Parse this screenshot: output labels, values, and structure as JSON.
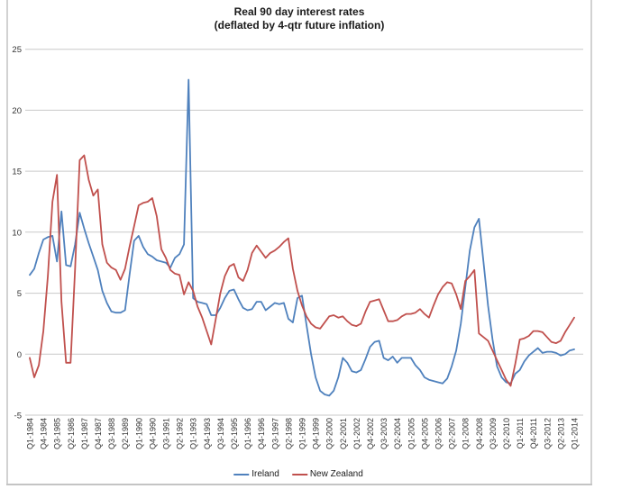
{
  "chart_data": {
    "type": "line",
    "title": "Real 90 day interest rates",
    "subtitle": "(deflated by 4-qtr future inflation)",
    "xlabel": "",
    "ylabel": "",
    "ylim": [
      -5,
      25
    ],
    "y_ticks": [
      -5,
      0,
      5,
      10,
      15,
      20,
      25
    ],
    "grid": true,
    "legend_position": "bottom",
    "x_tick_every": 3,
    "x_categories": [
      "Q1-1984",
      "Q2-1984",
      "Q3-1984",
      "Q4-1984",
      "Q1-1985",
      "Q2-1985",
      "Q3-1985",
      "Q4-1985",
      "Q1-1986",
      "Q2-1986",
      "Q3-1986",
      "Q4-1986",
      "Q1-1987",
      "Q2-1987",
      "Q3-1987",
      "Q4-1987",
      "Q1-1988",
      "Q2-1988",
      "Q3-1988",
      "Q4-1988",
      "Q1-1989",
      "Q2-1989",
      "Q3-1989",
      "Q4-1989",
      "Q1-1990",
      "Q2-1990",
      "Q3-1990",
      "Q4-1990",
      "Q1-1991",
      "Q2-1991",
      "Q3-1991",
      "Q4-1991",
      "Q1-1992",
      "Q2-1992",
      "Q3-1992",
      "Q4-1992",
      "Q1-1993",
      "Q2-1993",
      "Q3-1993",
      "Q4-1993",
      "Q1-1994",
      "Q2-1994",
      "Q3-1994",
      "Q4-1994",
      "Q1-1995",
      "Q2-1995",
      "Q3-1995",
      "Q4-1995",
      "Q1-1996",
      "Q2-1996",
      "Q3-1996",
      "Q4-1996",
      "Q1-1997",
      "Q2-1997",
      "Q3-1997",
      "Q4-1997",
      "Q1-1998",
      "Q2-1998",
      "Q3-1998",
      "Q4-1998",
      "Q1-1999",
      "Q2-1999",
      "Q3-1999",
      "Q4-1999",
      "Q1-2000",
      "Q2-2000",
      "Q3-2000",
      "Q4-2000",
      "Q1-2001",
      "Q2-2001",
      "Q3-2001",
      "Q4-2001",
      "Q1-2002",
      "Q2-2002",
      "Q3-2002",
      "Q4-2002",
      "Q1-2003",
      "Q2-2003",
      "Q3-2003",
      "Q4-2003",
      "Q1-2004",
      "Q2-2004",
      "Q3-2004",
      "Q4-2004",
      "Q1-2005",
      "Q2-2005",
      "Q3-2005",
      "Q4-2005",
      "Q1-2006",
      "Q2-2006",
      "Q3-2006",
      "Q4-2006",
      "Q1-2007",
      "Q2-2007",
      "Q3-2007",
      "Q4-2007",
      "Q1-2008",
      "Q2-2008",
      "Q3-2008",
      "Q4-2008",
      "Q1-2009",
      "Q2-2009",
      "Q3-2009",
      "Q4-2009",
      "Q1-2010",
      "Q2-2010",
      "Q3-2010",
      "Q4-2010",
      "Q1-2011",
      "Q2-2011",
      "Q3-2011",
      "Q4-2011",
      "Q1-2012",
      "Q2-2012",
      "Q3-2012",
      "Q4-2012",
      "Q1-2013",
      "Q2-2013",
      "Q3-2013",
      "Q4-2013",
      "Q1-2014"
    ],
    "series": [
      {
        "name": "Ireland",
        "color": "#4F81BD",
        "values": [
          6.5,
          7.0,
          8.3,
          9.4,
          9.6,
          9.7,
          7.6,
          11.7,
          7.3,
          7.2,
          9.0,
          11.6,
          10.3,
          9.1,
          8.0,
          6.9,
          5.2,
          4.2,
          3.5,
          3.4,
          3.4,
          3.6,
          6.5,
          9.3,
          9.7,
          8.8,
          8.2,
          8.0,
          7.7,
          7.6,
          7.5,
          7.1,
          7.9,
          8.2,
          9.0,
          22.5,
          4.6,
          4.3,
          4.2,
          4.1,
          3.2,
          3.2,
          3.8,
          4.6,
          5.2,
          5.3,
          4.5,
          3.8,
          3.6,
          3.7,
          4.3,
          4.3,
          3.6,
          3.9,
          4.2,
          4.1,
          4.2,
          2.9,
          2.6,
          4.6,
          4.8,
          2.4,
          0.0,
          -1.9,
          -3.0,
          -3.3,
          -3.4,
          -3.0,
          -1.9,
          -0.3,
          -0.7,
          -1.4,
          -1.5,
          -1.3,
          -0.4,
          0.6,
          1.0,
          1.1,
          -0.3,
          -0.5,
          -0.2,
          -0.7,
          -0.3,
          -0.3,
          -0.3,
          -0.9,
          -1.3,
          -1.9,
          -2.1,
          -2.2,
          -2.3,
          -2.4,
          -2.0,
          -1.0,
          0.3,
          2.5,
          5.5,
          8.5,
          10.4,
          11.1,
          7.6,
          4.0,
          1.2,
          -1.0,
          -1.9,
          -2.3,
          -2.4,
          -1.6,
          -1.3,
          -0.6,
          -0.1,
          0.2,
          0.5,
          0.1,
          0.2,
          0.2,
          0.1,
          -0.1,
          0.0,
          0.3,
          0.4
        ]
      },
      {
        "name": "New Zealand",
        "color": "#C0504D",
        "values": [
          -0.3,
          -1.9,
          -0.9,
          1.9,
          6.4,
          12.5,
          14.7,
          4.3,
          -0.7,
          -0.7,
          7.0,
          15.9,
          16.3,
          14.3,
          13.0,
          13.5,
          9.0,
          7.5,
          7.1,
          6.9,
          6.1,
          7.0,
          8.8,
          10.5,
          12.2,
          12.4,
          12.5,
          12.8,
          11.3,
          8.6,
          7.9,
          6.9,
          6.6,
          6.5,
          4.9,
          5.9,
          5.2,
          3.9,
          3.0,
          1.9,
          0.8,
          2.9,
          5.0,
          6.4,
          7.2,
          7.4,
          6.3,
          6.0,
          6.9,
          8.3,
          8.9,
          8.4,
          7.9,
          8.3,
          8.5,
          8.8,
          9.2,
          9.5,
          7.0,
          5.2,
          4.0,
          3.1,
          2.5,
          2.2,
          2.1,
          2.6,
          3.1,
          3.2,
          3.0,
          3.1,
          2.7,
          2.4,
          2.3,
          2.5,
          3.5,
          4.3,
          4.4,
          4.5,
          3.6,
          2.7,
          2.7,
          2.8,
          3.1,
          3.3,
          3.3,
          3.4,
          3.7,
          3.3,
          3.0,
          4.0,
          4.9,
          5.5,
          5.9,
          5.8,
          4.9,
          3.7,
          6.0,
          6.4,
          6.9,
          1.7,
          1.4,
          1.1,
          0.3,
          -0.5,
          -1.3,
          -2.1,
          -2.6,
          -0.8,
          1.2,
          1.3,
          1.5,
          1.9,
          1.9,
          1.8,
          1.4,
          1.0,
          0.9,
          1.1,
          1.8,
          2.4,
          3.0
        ]
      }
    ]
  },
  "style": {
    "gridline_color": "#c9c9c9",
    "axis_label_color": "#333333",
    "frame_color": "#d2d2d2",
    "background": "#ffffff"
  }
}
